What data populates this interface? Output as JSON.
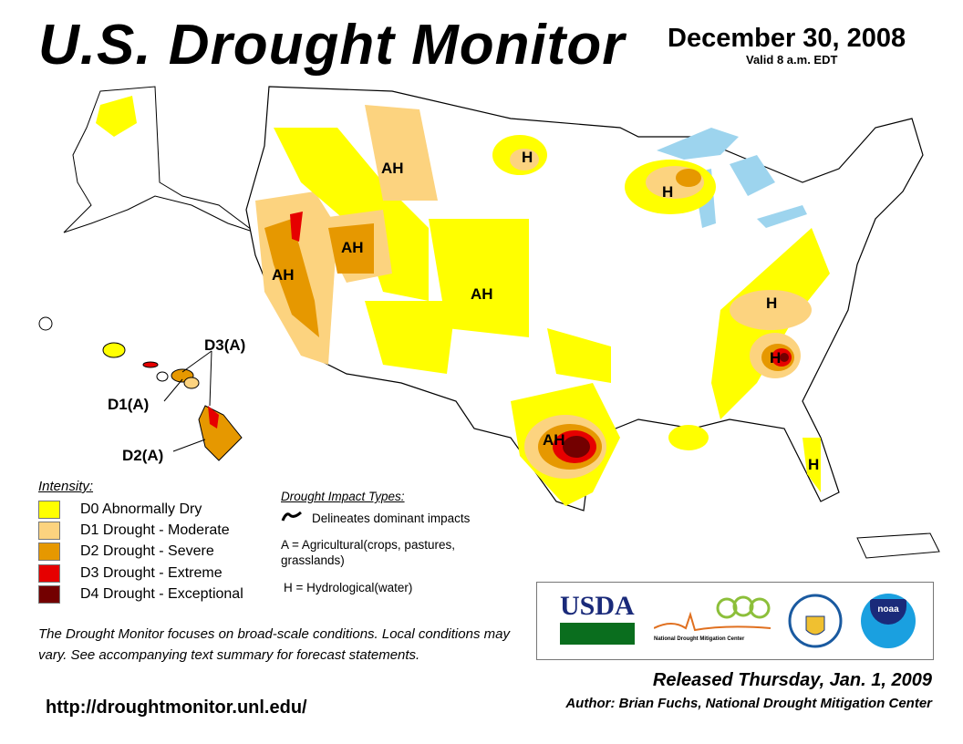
{
  "header": {
    "title": "U.S. Drought Monitor",
    "date": "December 30, 2008",
    "valid": "Valid 8 a.m. EDT"
  },
  "map_labels": {
    "ah1": "AH",
    "h1": "H",
    "h2": "H",
    "ah2": "AH",
    "ah3": "AH",
    "ah4": "AH",
    "h3": "H",
    "h4": "H",
    "ah5": "AH",
    "h5": "H",
    "hi_d3": "D3(A)",
    "hi_d1": "D1(A)",
    "hi_d2": "D2(A)"
  },
  "legend": {
    "title": "Intensity:",
    "items": [
      {
        "label": "D0 Abnormally Dry",
        "color": "#FFFF00"
      },
      {
        "label": "D1 Drought - Moderate",
        "color": "#FCD37F"
      },
      {
        "label": "D2 Drought - Severe",
        "color": "#E69800"
      },
      {
        "label": "D3 Drought - Extreme",
        "color": "#E60000"
      },
      {
        "label": "D4 Drought - Exceptional",
        "color": "#730000"
      }
    ]
  },
  "impacts": {
    "title": "Drought Impact Types:",
    "delineates": "Delineates dominant impacts",
    "agri": "A = Agricultural(crops, pastures, grasslands)",
    "hydro": "H = Hydrological(water)"
  },
  "footer": {
    "focus": "The Drought Monitor focuses on broad-scale conditions. Local conditions may vary. See accompanying text summary for forecast statements.",
    "url": "http://droughtmonitor.unl.edu/",
    "released": "Released Thursday, Jan. 1, 2009",
    "author": "Author: Brian Fuchs, National Drought Mitigation Center"
  },
  "logos": {
    "usda": "USDA",
    "ndmc": "National Drought Mitigation Center",
    "noaa": "noaa"
  }
}
